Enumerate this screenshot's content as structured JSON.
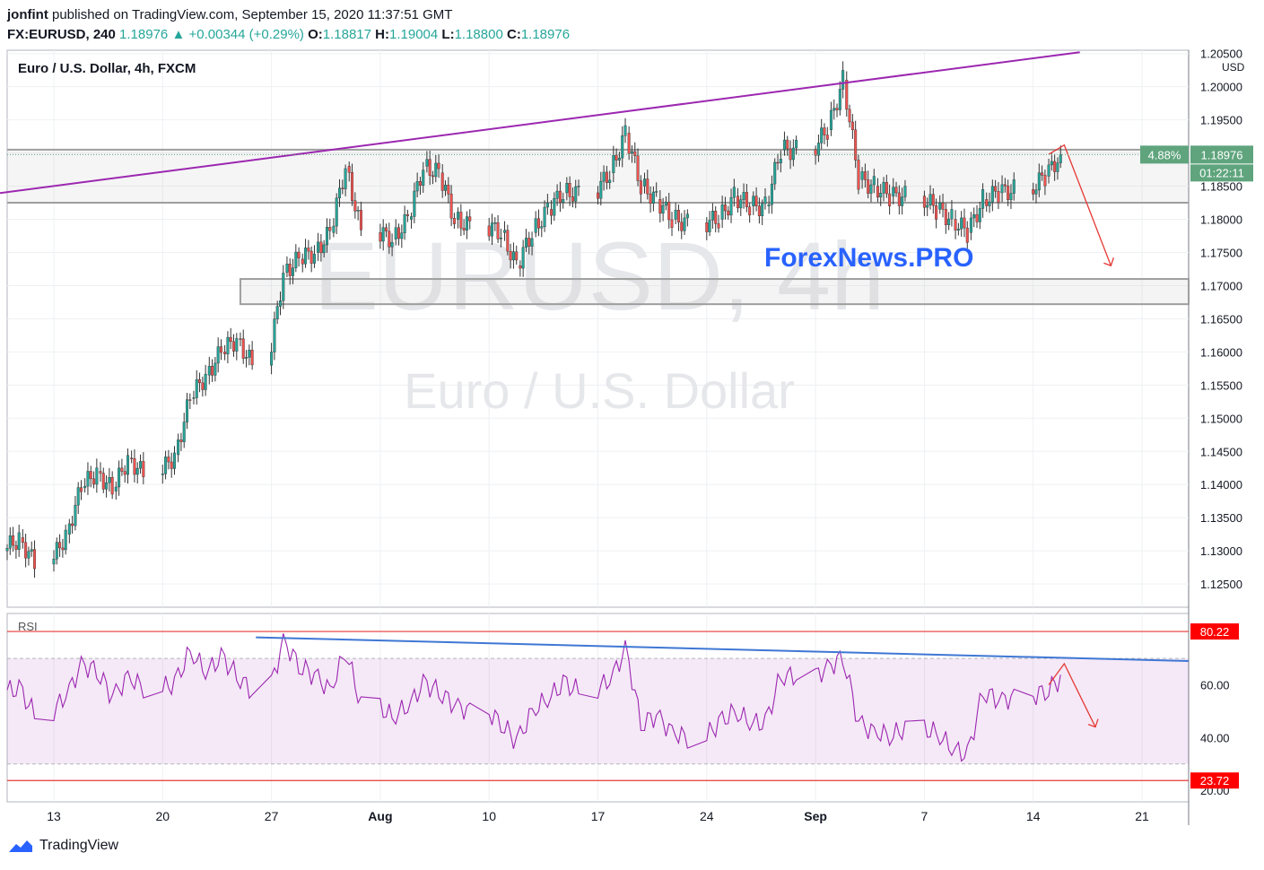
{
  "header": {
    "author": "jonfint",
    "published_text": "published on TradingView.com, September 15, 2020 11:37:51 GMT",
    "symbol": "FX:EURUSD, 240",
    "last": "1.18976",
    "change": "+0.00344 (+0.29%)",
    "o_label": "O:",
    "o": "1.18817",
    "h_label": "H:",
    "h": "1.19004",
    "l_label": "L:",
    "l": "1.18800",
    "c_label": "C:",
    "c": "1.18976"
  },
  "chart_title": "Euro / U.S. Dollar, 4h, FXCM",
  "watermark": {
    "symbol": "EURUSD, 4h",
    "name": "Euro / U.S. Dollar",
    "brand": "ForexNews.PRO"
  },
  "price_axis": {
    "currency": "USD",
    "ticks": [
      "1.20500",
      "1.20000",
      "1.19500",
      "1.19000",
      "1.18500",
      "1.18000",
      "1.17500",
      "1.17000",
      "1.16500",
      "1.16000",
      "1.15500",
      "1.15000",
      "1.14500",
      "1.14000",
      "1.13500",
      "1.13000",
      "1.12500"
    ],
    "last_price_label": "1.18976",
    "percent_label": "4.88%",
    "countdown": "01:22:11"
  },
  "rsi": {
    "label": "RSI",
    "ticks": [
      "60.00",
      "40.00",
      "20.00"
    ],
    "high_label": "80.22",
    "low_label": "23.72"
  },
  "time_axis": {
    "labels": [
      "13",
      "20",
      "27",
      "Aug",
      "10",
      "17",
      "24",
      "Sep",
      "7",
      "14",
      "21"
    ]
  },
  "footer": {
    "brand": "TradingView"
  },
  "colors": {
    "up": "#26a69a",
    "down": "#ef5350",
    "trend_upper": "#9c27b0",
    "rsi_line": "#9c27b0",
    "rsi_trend": "#3f77d4",
    "forecast": "#e53935",
    "last_price_bg": "#5fa47d",
    "brand": "#2962ff"
  },
  "chart_data": {
    "type": "candlestick",
    "title": "Euro / U.S. Dollar, 4h, FXCM",
    "x_range": [
      "2020-07-10",
      "2020-09-24"
    ],
    "ylim": [
      1.1215,
      1.2055
    ],
    "price_series": {
      "name": "EURUSD",
      "points": [
        [
          "2020-07-10",
          1.132
        ],
        [
          "2020-07-11",
          1.128
        ],
        [
          "2020-07-13",
          1.1325
        ],
        [
          "2020-07-14",
          1.1395
        ],
        [
          "2020-07-15",
          1.142
        ],
        [
          "2020-07-16",
          1.139
        ],
        [
          "2020-07-17",
          1.144
        ],
        [
          "2020-07-18",
          1.1415
        ],
        [
          "2020-07-20",
          1.1445
        ],
        [
          "2020-07-21",
          1.153
        ],
        [
          "2020-07-22",
          1.1565
        ],
        [
          "2020-07-23",
          1.16
        ],
        [
          "2020-07-24",
          1.162
        ],
        [
          "2020-07-25",
          1.158
        ],
        [
          "2020-07-27",
          1.172
        ],
        [
          "2020-07-28",
          1.174
        ],
        [
          "2020-07-29",
          1.175
        ],
        [
          "2020-07-30",
          1.178
        ],
        [
          "2020-07-31",
          1.188
        ],
        [
          "2020-08-01",
          1.178
        ],
        [
          "2020-08-03",
          1.177
        ],
        [
          "2020-08-04",
          1.18
        ],
        [
          "2020-08-05",
          1.188
        ],
        [
          "2020-08-06",
          1.187
        ],
        [
          "2020-08-07",
          1.18
        ],
        [
          "2020-08-08",
          1.179
        ],
        [
          "2020-08-10",
          1.178
        ],
        [
          "2020-08-11",
          1.173
        ],
        [
          "2020-08-12",
          1.178
        ],
        [
          "2020-08-13",
          1.1815
        ],
        [
          "2020-08-14",
          1.184
        ],
        [
          "2020-08-15",
          1.184
        ],
        [
          "2020-08-17",
          1.187
        ],
        [
          "2020-08-18",
          1.193
        ],
        [
          "2020-08-19",
          1.185
        ],
        [
          "2020-08-20",
          1.183
        ],
        [
          "2020-08-21",
          1.18
        ],
        [
          "2020-08-22",
          1.1795
        ],
        [
          "2020-08-24",
          1.18
        ],
        [
          "2020-08-25",
          1.1835
        ],
        [
          "2020-08-26",
          1.182
        ],
        [
          "2020-08-27",
          1.182
        ],
        [
          "2020-08-28",
          1.1905
        ],
        [
          "2020-08-29",
          1.1905
        ],
        [
          "2020-08-31",
          1.1935
        ],
        [
          "2020-09-01",
          1.201
        ],
        [
          "2020-09-02",
          1.186
        ],
        [
          "2020-09-03",
          1.185
        ],
        [
          "2020-09-04",
          1.1835
        ],
        [
          "2020-09-05",
          1.1835
        ],
        [
          "2020-09-07",
          1.1815
        ],
        [
          "2020-09-08",
          1.18
        ],
        [
          "2020-09-09",
          1.178
        ],
        [
          "2020-09-10",
          1.183
        ],
        [
          "2020-09-11",
          1.184
        ],
        [
          "2020-09-12",
          1.1845
        ],
        [
          "2020-09-14",
          1.1865
        ],
        [
          "2020-09-15",
          1.18976
        ]
      ]
    },
    "rsi_series": {
      "name": "RSI",
      "points": [
        [
          "2020-07-10",
          58
        ],
        [
          "2020-07-11",
          49
        ],
        [
          "2020-07-13",
          56
        ],
        [
          "2020-07-14",
          67
        ],
        [
          "2020-07-15",
          66
        ],
        [
          "2020-07-16",
          55
        ],
        [
          "2020-07-17",
          63
        ],
        [
          "2020-07-18",
          59
        ],
        [
          "2020-07-20",
          60
        ],
        [
          "2020-07-21",
          73
        ],
        [
          "2020-07-22",
          65
        ],
        [
          "2020-07-23",
          70
        ],
        [
          "2020-07-24",
          64
        ],
        [
          "2020-07-25",
          57
        ],
        [
          "2020-07-27",
          76
        ],
        [
          "2020-07-28",
          68
        ],
        [
          "2020-07-29",
          63
        ],
        [
          "2020-07-30",
          58
        ],
        [
          "2020-07-31",
          73
        ],
        [
          "2020-08-01",
          52
        ],
        [
          "2020-08-03",
          48
        ],
        [
          "2020-08-04",
          52
        ],
        [
          "2020-08-05",
          60
        ],
        [
          "2020-08-06",
          58
        ],
        [
          "2020-08-07",
          52
        ],
        [
          "2020-08-08",
          50
        ],
        [
          "2020-08-10",
          46
        ],
        [
          "2020-08-11",
          38
        ],
        [
          "2020-08-12",
          50
        ],
        [
          "2020-08-13",
          55
        ],
        [
          "2020-08-14",
          60
        ],
        [
          "2020-08-15",
          58
        ],
        [
          "2020-08-17",
          62
        ],
        [
          "2020-08-18",
          73
        ],
        [
          "2020-08-19",
          46
        ],
        [
          "2020-08-20",
          48
        ],
        [
          "2020-08-21",
          42
        ],
        [
          "2020-08-22",
          40
        ],
        [
          "2020-08-24",
          45
        ],
        [
          "2020-08-25",
          50
        ],
        [
          "2020-08-26",
          46
        ],
        [
          "2020-08-27",
          45
        ],
        [
          "2020-08-28",
          64
        ],
        [
          "2020-08-29",
          63
        ],
        [
          "2020-08-31",
          66
        ],
        [
          "2020-09-01",
          71
        ],
        [
          "2020-09-02",
          45
        ],
        [
          "2020-09-03",
          42
        ],
        [
          "2020-09-04",
          41
        ],
        [
          "2020-09-05",
          43
        ],
        [
          "2020-09-07",
          42
        ],
        [
          "2020-09-08",
          36
        ],
        [
          "2020-09-09",
          33
        ],
        [
          "2020-09-10",
          58
        ],
        [
          "2020-09-11",
          54
        ],
        [
          "2020-09-12",
          55
        ],
        [
          "2020-09-14",
          58
        ],
        [
          "2020-09-15",
          62
        ]
      ]
    },
    "rsi_levels": [
      80.22,
      23.72
    ],
    "rsi_band": [
      30,
      70
    ],
    "drawings": {
      "upper_trendline": [
        [
          "2020-07-09",
          1.1838
        ],
        [
          "2020-09-17",
          1.2052
        ]
      ],
      "resistance_zone": [
        1.1825,
        1.1905
      ],
      "support_zone": [
        1.1672,
        1.171
      ],
      "support_zone_start": "2020-07-25",
      "rsi_trendline": [
        [
          "2020-07-26",
          78
        ],
        [
          "2020-09-24",
          69
        ]
      ],
      "forecast_price": [
        [
          "2020-09-15",
          1.1898
        ],
        [
          "2020-09-16",
          1.1912
        ],
        [
          "2020-09-19",
          1.173
        ]
      ],
      "forecast_rsi": [
        [
          "2020-09-15",
          60
        ],
        [
          "2020-09-16",
          68
        ],
        [
          "2020-09-18",
          44
        ]
      ]
    }
  }
}
